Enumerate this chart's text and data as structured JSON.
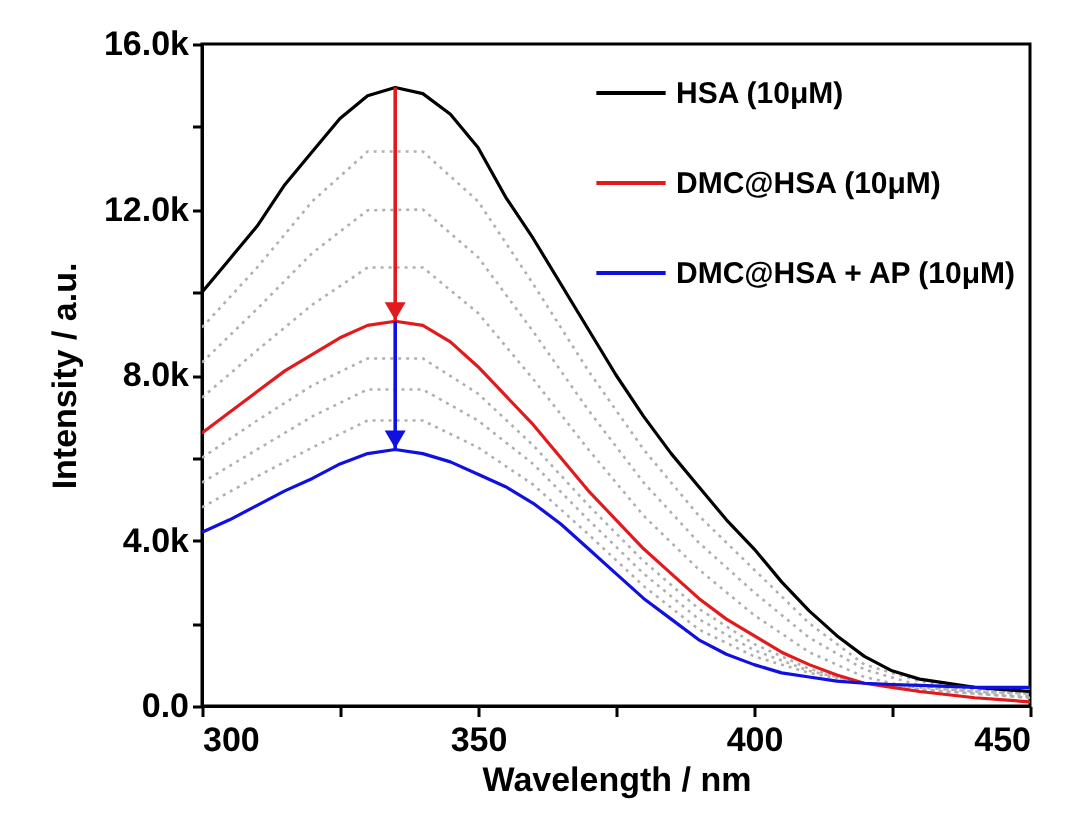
{
  "chart_data": {
    "type": "line",
    "xlabel": "Wavelength / nm",
    "ylabel": "Intensity / a.u.",
    "xlim": [
      300,
      450
    ],
    "xticks": [
      300,
      {
        "value": 325,
        "label": null
      },
      350,
      {
        "value": 375,
        "label": null
      },
      400,
      {
        "value": 425,
        "label": null
      },
      450
    ],
    "ylim": [
      0,
      16000
    ],
    "yticks": [
      {
        "value": 0,
        "label": "0.0"
      },
      {
        "value": 2000,
        "label": null
      },
      {
        "value": 4000,
        "label": "4.0k"
      },
      {
        "value": 6000,
        "label": null
      },
      {
        "value": 8000,
        "label": "8.0k"
      },
      {
        "value": 10000,
        "label": null
      },
      {
        "value": 12000,
        "label": "12.0k"
      },
      {
        "value": 14000,
        "label": null
      },
      {
        "value": 16000,
        "label": "16.0k"
      }
    ],
    "grid": false,
    "legend": "top right",
    "series": [
      {
        "line_style": "dotted",
        "color": "#b0b0b0",
        "x": [
          300,
          310,
          320,
          330,
          340,
          350,
          360,
          370,
          380,
          390,
          400,
          410,
          420,
          430,
          440,
          450
        ],
        "values": [
          9150,
          10600,
          12200,
          13400,
          13400,
          12200,
          10200,
          8100,
          6200,
          4600,
          3300,
          2000,
          1000,
          600,
          400,
          300
        ]
      },
      {
        "line_style": "dotted",
        "color": "#b0b0b0",
        "x": [
          300,
          310,
          320,
          330,
          340,
          350,
          360,
          370,
          380,
          390,
          400,
          410,
          420,
          430,
          440,
          450
        ],
        "values": [
          8300,
          9600,
          10950,
          11980,
          12000,
          10850,
          9050,
          7150,
          5400,
          3950,
          2750,
          1650,
          880,
          500,
          330,
          230
        ]
      },
      {
        "line_style": "dotted",
        "color": "#b0b0b0",
        "x": [
          300,
          310,
          320,
          330,
          340,
          350,
          360,
          370,
          380,
          390,
          400,
          410,
          420,
          430,
          440,
          450
        ],
        "values": [
          7450,
          8600,
          9700,
          10600,
          10600,
          9500,
          7900,
          6200,
          4600,
          3300,
          2200,
          1300,
          700,
          400,
          300,
          200
        ]
      },
      {
        "line_style": "dotted",
        "color": "#b0b0b0",
        "x": [
          300,
          310,
          320,
          330,
          340,
          350,
          360,
          370,
          380,
          390,
          400,
          410,
          420,
          430,
          440,
          450
        ],
        "values": [
          6000,
          6900,
          7750,
          8400,
          8400,
          7550,
          6300,
          4850,
          3500,
          2350,
          1500,
          900,
          550,
          400,
          300,
          200
        ]
      },
      {
        "line_style": "dotted",
        "color": "#b0b0b0",
        "x": [
          300,
          310,
          320,
          330,
          340,
          350,
          360,
          370,
          380,
          390,
          400,
          410,
          420,
          430,
          440,
          450
        ],
        "values": [
          5400,
          6200,
          7000,
          7650,
          7650,
          6900,
          5850,
          4500,
          3200,
          2100,
          1350,
          850,
          550,
          450,
          350,
          300
        ]
      },
      {
        "line_style": "dotted",
        "color": "#b0b0b0",
        "x": [
          300,
          310,
          320,
          330,
          340,
          350,
          360,
          370,
          380,
          390,
          400,
          410,
          420,
          430,
          440,
          450
        ],
        "values": [
          4800,
          5550,
          6250,
          6900,
          6900,
          6250,
          5350,
          4150,
          2900,
          1850,
          1200,
          800,
          550,
          500,
          400,
          400
        ]
      },
      {
        "name": "HSA (10μM)",
        "line_style": "solid",
        "color": "#000000",
        "x": [
          300,
          305,
          310,
          315,
          320,
          325,
          330,
          335,
          340,
          345,
          350,
          355,
          360,
          365,
          370,
          375,
          380,
          385,
          390,
          395,
          400,
          405,
          410,
          415,
          420,
          425,
          430,
          440,
          450
        ],
        "values": [
          10000,
          10800,
          11600,
          12600,
          13400,
          14200,
          14750,
          14950,
          14800,
          14300,
          13500,
          12300,
          11300,
          10200,
          9100,
          8000,
          7000,
          6100,
          5300,
          4500,
          3800,
          3000,
          2300,
          1700,
          1200,
          850,
          650,
          450,
          350
        ]
      },
      {
        "name": "DMC@HSA (10μM)",
        "line_style": "solid",
        "color": "#e31a1c",
        "x": [
          300,
          305,
          310,
          315,
          320,
          325,
          330,
          335,
          340,
          345,
          350,
          355,
          360,
          365,
          370,
          375,
          380,
          385,
          390,
          395,
          400,
          405,
          410,
          415,
          420,
          425,
          430,
          440,
          450
        ],
        "values": [
          6600,
          7100,
          7600,
          8100,
          8500,
          8900,
          9200,
          9300,
          9200,
          8800,
          8200,
          7500,
          6800,
          6000,
          5200,
          4500,
          3800,
          3200,
          2600,
          2100,
          1700,
          1300,
          1000,
          750,
          550,
          450,
          350,
          200,
          100
        ]
      },
      {
        "name": "DMC@HSA + AP (10μM)",
        "line_style": "solid",
        "color": "#1010e0",
        "x": [
          300,
          305,
          310,
          315,
          320,
          325,
          330,
          335,
          340,
          345,
          350,
          355,
          360,
          365,
          370,
          375,
          380,
          385,
          390,
          395,
          400,
          405,
          410,
          415,
          420,
          425,
          430,
          440,
          450
        ],
        "values": [
          4200,
          4500,
          4850,
          5200,
          5500,
          5850,
          6100,
          6200,
          6100,
          5900,
          5600,
          5300,
          4900,
          4400,
          3800,
          3200,
          2600,
          2100,
          1600,
          1250,
          1000,
          800,
          700,
          600,
          550,
          520,
          500,
          450,
          450
        ]
      }
    ]
  }
}
